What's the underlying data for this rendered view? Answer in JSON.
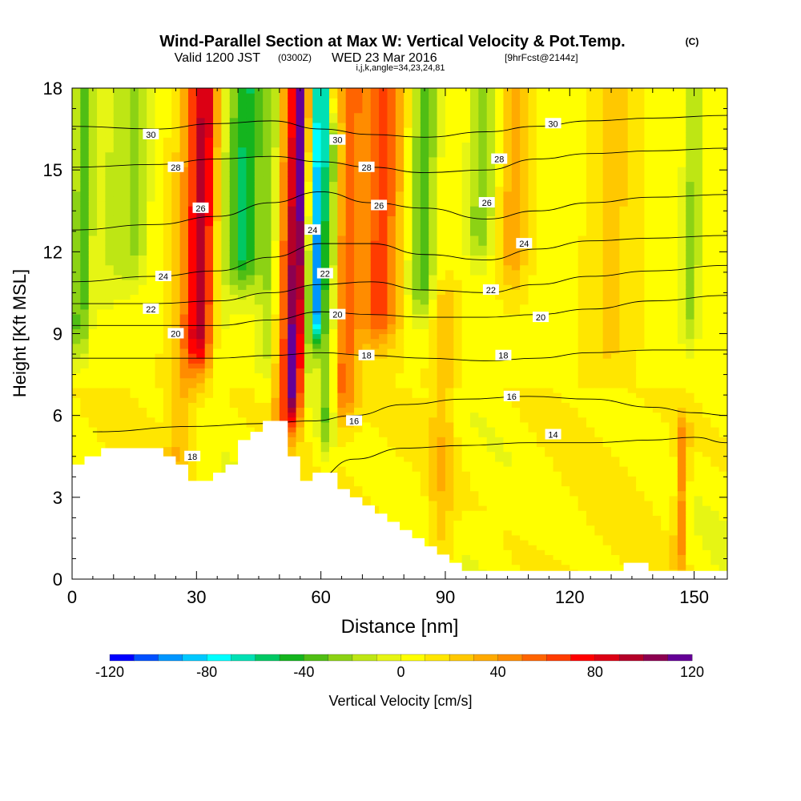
{
  "chart_data": {
    "type": "heatmap",
    "title": "Wind-Parallel Section at Max W: Vertical Velocity & Pot.Temp.",
    "title_tag": "(C)",
    "subtitle_main": "Valid 1200 JST",
    "subtitle_utc": "(0300Z)",
    "subtitle_date": "WED 23 Mar 2016",
    "subtitle_fcst": "[9hrFcst@2144z]",
    "subtitle_indices": "i,j,k,angle=34,23,24,81",
    "xlabel": "Distance [nm]",
    "ylabel": "Height [Kft MSL]",
    "xlim": [
      0,
      158
    ],
    "ylim": [
      0,
      18
    ],
    "x_ticks": [
      {
        "value": 0,
        "label": "0"
      },
      {
        "value": 30,
        "label": "30"
      },
      {
        "value": 60,
        "label": "60"
      },
      {
        "value": 90,
        "label": "90"
      },
      {
        "value": 120,
        "label": "120"
      },
      {
        "value": 150,
        "label": "150"
      }
    ],
    "y_ticks": [
      {
        "value": 0,
        "label": "0"
      },
      {
        "value": 3,
        "label": "3"
      },
      {
        "value": 6,
        "label": "6"
      },
      {
        "value": 9,
        "label": "9"
      },
      {
        "value": 12,
        "label": "12"
      },
      {
        "value": 15,
        "label": "15"
      },
      {
        "value": 18,
        "label": "18"
      }
    ],
    "colorbar": {
      "label": "Vertical Velocity [cm/s]",
      "range": [
        -120,
        120
      ],
      "step": 10,
      "tick_labels": [
        {
          "value": -120,
          "label": "-120"
        },
        {
          "value": -80,
          "label": "-80"
        },
        {
          "value": -40,
          "label": "-40"
        },
        {
          "value": 0,
          "label": "0"
        },
        {
          "value": 40,
          "label": "40"
        },
        {
          "value": 80,
          "label": "80"
        },
        {
          "value": 120,
          "label": "120"
        }
      ],
      "colors": [
        "#0000ff",
        "#0050ff",
        "#0096ff",
        "#00c8ff",
        "#00ffff",
        "#00e0b4",
        "#00c864",
        "#14b41e",
        "#50be14",
        "#8cd214",
        "#bee614",
        "#e6f514",
        "#ffff00",
        "#ffe600",
        "#ffc800",
        "#ffaa00",
        "#ff8c00",
        "#ff6400",
        "#ff3c00",
        "#ff0000",
        "#dc0014",
        "#b40028",
        "#8c0050",
        "#640096"
      ]
    },
    "theta_contours": [
      {
        "level": 14,
        "points": [
          [
            58,
            3.6
          ],
          [
            68,
            4.4
          ],
          [
            80,
            4.8
          ],
          [
            95,
            4.9
          ],
          [
            110,
            5.0
          ],
          [
            125,
            5.0
          ],
          [
            140,
            5.1
          ],
          [
            150,
            5.2
          ],
          [
            158,
            5.0
          ]
        ]
      },
      {
        "level": 16,
        "points": [
          [
            5,
            5.4
          ],
          [
            30,
            5.6
          ],
          [
            45,
            5.7
          ],
          [
            58,
            5.8
          ],
          [
            68,
            6.0
          ],
          [
            80,
            6.4
          ],
          [
            95,
            6.6
          ],
          [
            110,
            6.7
          ],
          [
            125,
            6.6
          ],
          [
            140,
            6.3
          ],
          [
            150,
            6.1
          ],
          [
            158,
            6.0
          ]
        ]
      },
      {
        "level": 18,
        "points": [
          [
            0,
            8.1
          ],
          [
            20,
            8.1
          ],
          [
            35,
            8.1
          ],
          [
            48,
            8.2
          ],
          [
            60,
            8.3
          ],
          [
            72,
            8.2
          ],
          [
            85,
            8.1
          ],
          [
            100,
            8.0
          ],
          [
            112,
            8.1
          ],
          [
            125,
            8.3
          ],
          [
            140,
            8.4
          ],
          [
            158,
            8.4
          ]
        ]
      },
      {
        "level": 20,
        "points": [
          [
            0,
            9.3
          ],
          [
            20,
            9.3
          ],
          [
            35,
            9.3
          ],
          [
            48,
            9.5
          ],
          [
            60,
            9.8
          ],
          [
            72,
            9.7
          ],
          [
            85,
            9.6
          ],
          [
            100,
            9.6
          ],
          [
            112,
            9.7
          ],
          [
            125,
            9.9
          ],
          [
            140,
            10.2
          ],
          [
            158,
            10.4
          ]
        ]
      },
      {
        "level": 22,
        "points": [
          [
            0,
            10.1
          ],
          [
            20,
            10.1
          ],
          [
            35,
            10.2
          ],
          [
            48,
            10.5
          ],
          [
            60,
            10.8
          ],
          [
            72,
            10.9
          ],
          [
            85,
            10.6
          ],
          [
            100,
            10.5
          ],
          [
            112,
            10.8
          ],
          [
            125,
            11.1
          ],
          [
            140,
            11.3
          ],
          [
            158,
            11.5
          ]
        ]
      },
      {
        "level": 24,
        "points": [
          [
            0,
            10.9
          ],
          [
            20,
            11.1
          ],
          [
            35,
            11.3
          ],
          [
            48,
            11.8
          ],
          [
            60,
            12.3
          ],
          [
            72,
            12.3
          ],
          [
            85,
            11.9
          ],
          [
            100,
            11.7
          ],
          [
            112,
            12.1
          ],
          [
            125,
            12.4
          ],
          [
            140,
            12.5
          ],
          [
            158,
            12.6
          ]
        ]
      },
      {
        "level": 26,
        "points": [
          [
            0,
            12.8
          ],
          [
            20,
            13.0
          ],
          [
            35,
            13.3
          ],
          [
            48,
            13.8
          ],
          [
            60,
            14.2
          ],
          [
            72,
            13.8
          ],
          [
            85,
            13.6
          ],
          [
            100,
            13.2
          ],
          [
            112,
            13.5
          ],
          [
            125,
            13.8
          ],
          [
            140,
            14.0
          ],
          [
            158,
            14.1
          ]
        ]
      },
      {
        "level": 28,
        "points": [
          [
            0,
            15.1
          ],
          [
            20,
            15.2
          ],
          [
            35,
            15.4
          ],
          [
            48,
            15.5
          ],
          [
            60,
            15.3
          ],
          [
            72,
            15.1
          ],
          [
            85,
            14.9
          ],
          [
            100,
            15.0
          ],
          [
            112,
            15.4
          ],
          [
            125,
            15.6
          ],
          [
            140,
            15.7
          ],
          [
            158,
            15.8
          ]
        ]
      },
      {
        "level": 30,
        "points": [
          [
            0,
            16.6
          ],
          [
            20,
            16.5
          ],
          [
            35,
            16.7
          ],
          [
            48,
            16.8
          ],
          [
            60,
            16.5
          ],
          [
            72,
            16.3
          ],
          [
            85,
            16.2
          ],
          [
            100,
            16.4
          ],
          [
            112,
            16.6
          ],
          [
            125,
            16.8
          ],
          [
            140,
            16.9
          ],
          [
            158,
            17.0
          ]
        ]
      }
    ],
    "contour_labels": [
      {
        "text": "30",
        "x": 19,
        "y": 16.3
      },
      {
        "text": "28",
        "x": 25,
        "y": 15.1
      },
      {
        "text": "26",
        "x": 31,
        "y": 13.6
      },
      {
        "text": "24",
        "x": 22,
        "y": 11.1
      },
      {
        "text": "22",
        "x": 19,
        "y": 9.9
      },
      {
        "text": "20",
        "x": 25,
        "y": 9.0
      },
      {
        "text": "18",
        "x": 29,
        "y": 4.5
      },
      {
        "text": "30",
        "x": 64,
        "y": 16.1
      },
      {
        "text": "28",
        "x": 71,
        "y": 15.1
      },
      {
        "text": "26",
        "x": 74,
        "y": 13.7
      },
      {
        "text": "24",
        "x": 58,
        "y": 12.8
      },
      {
        "text": "22",
        "x": 61,
        "y": 11.2
      },
      {
        "text": "20",
        "x": 64,
        "y": 9.7
      },
      {
        "text": "18",
        "x": 71,
        "y": 8.2
      },
      {
        "text": "16",
        "x": 68,
        "y": 5.8
      },
      {
        "text": "30",
        "x": 116,
        "y": 16.7
      },
      {
        "text": "28",
        "x": 103,
        "y": 15.4
      },
      {
        "text": "26",
        "x": 100,
        "y": 13.8
      },
      {
        "text": "24",
        "x": 109,
        "y": 12.3
      },
      {
        "text": "22",
        "x": 101,
        "y": 10.6
      },
      {
        "text": "20",
        "x": 113,
        "y": 9.6
      },
      {
        "text": "18",
        "x": 104,
        "y": 8.2
      },
      {
        "text": "16",
        "x": 106,
        "y": 6.7
      },
      {
        "text": "14",
        "x": 116,
        "y": 5.3
      }
    ],
    "terrain": [
      [
        0,
        4.2
      ],
      [
        3,
        4.2
      ],
      [
        3,
        4.5
      ],
      [
        7,
        4.5
      ],
      [
        7,
        4.8
      ],
      [
        22,
        4.8
      ],
      [
        22,
        4.5
      ],
      [
        25,
        4.5
      ],
      [
        25,
        4.2
      ],
      [
        28,
        4.2
      ],
      [
        28,
        3.6
      ],
      [
        34,
        3.6
      ],
      [
        34,
        3.9
      ],
      [
        37,
        3.9
      ],
      [
        37,
        4.2
      ],
      [
        40,
        4.2
      ],
      [
        40,
        5.1
      ],
      [
        43,
        5.1
      ],
      [
        43,
        5.4
      ],
      [
        46,
        5.4
      ],
      [
        46,
        5.8
      ],
      [
        52,
        5.8
      ],
      [
        52,
        4.5
      ],
      [
        55,
        4.5
      ],
      [
        55,
        3.6
      ],
      [
        58,
        3.6
      ],
      [
        58,
        3.9
      ],
      [
        64,
        3.9
      ],
      [
        64,
        3.3
      ],
      [
        67,
        3.3
      ],
      [
        67,
        3.0
      ],
      [
        70,
        3.0
      ],
      [
        70,
        2.7
      ],
      [
        73,
        2.7
      ],
      [
        73,
        2.4
      ],
      [
        76,
        2.4
      ],
      [
        76,
        2.1
      ],
      [
        79,
        2.1
      ],
      [
        79,
        1.8
      ],
      [
        82,
        1.8
      ],
      [
        82,
        1.5
      ],
      [
        85,
        1.5
      ],
      [
        85,
        1.2
      ],
      [
        88,
        1.2
      ],
      [
        88,
        0.9
      ],
      [
        91,
        0.9
      ],
      [
        91,
        0.6
      ],
      [
        94,
        0.6
      ],
      [
        94,
        0.3
      ],
      [
        133,
        0.3
      ],
      [
        133,
        0.6
      ],
      [
        139,
        0.6
      ],
      [
        139,
        0.3
      ],
      [
        158,
        0.3
      ]
    ],
    "velocity_bands": [
      {
        "center": 2,
        "width": 3,
        "value": -45,
        "top": 18,
        "bottom": 9.5
      },
      {
        "center": 8,
        "width": 4,
        "value": -15,
        "top": 18,
        "bottom": 11
      },
      {
        "center": 14,
        "width": 5,
        "value": -30,
        "top": 18,
        "bottom": 12
      },
      {
        "center": 27,
        "width": 4,
        "value": 25,
        "top": 18,
        "bottom": 5
      },
      {
        "center": 31,
        "width": 4,
        "value": 80,
        "top": 18,
        "bottom": 9
      },
      {
        "center": 36,
        "width": 3,
        "value": -10,
        "top": 18,
        "bottom": 8
      },
      {
        "center": 41,
        "width": 5,
        "value": -60,
        "top": 18,
        "bottom": 12
      },
      {
        "center": 47,
        "width": 3,
        "value": -25,
        "top": 18,
        "bottom": 9
      },
      {
        "center": 51,
        "width": 2.5,
        "value": 40,
        "top": 18,
        "bottom": 6
      },
      {
        "center": 54,
        "width": 2.5,
        "value": 110,
        "top": 18,
        "bottom": 7
      },
      {
        "center": 57,
        "width": 2,
        "value": -25,
        "top": 18,
        "bottom": 8
      },
      {
        "center": 59,
        "width": 2,
        "value": -95,
        "top": 18,
        "bottom": 10
      },
      {
        "center": 62,
        "width": 2.5,
        "value": -40,
        "top": 16,
        "bottom": 6
      },
      {
        "center": 66,
        "width": 4,
        "value": 45,
        "top": 18,
        "bottom": 7
      },
      {
        "center": 74,
        "width": 6,
        "value": 55,
        "top": 18,
        "bottom": 10
      },
      {
        "center": 84,
        "width": 4,
        "value": -45,
        "top": 18,
        "bottom": 11
      },
      {
        "center": 90,
        "width": 4,
        "value": 20,
        "top": 10,
        "bottom": 0.5
      },
      {
        "center": 98,
        "width": 4,
        "value": -35,
        "top": 18,
        "bottom": 13
      },
      {
        "center": 106,
        "width": 4,
        "value": 30,
        "top": 18,
        "bottom": 12
      },
      {
        "center": 130,
        "width": 6,
        "value": 15,
        "top": 18,
        "bottom": 9
      },
      {
        "center": 149,
        "width": 3,
        "value": -30,
        "top": 18,
        "bottom": 10
      },
      {
        "center": 148,
        "width": 2,
        "value": 40,
        "top": 5,
        "bottom": 1.5
      }
    ]
  }
}
